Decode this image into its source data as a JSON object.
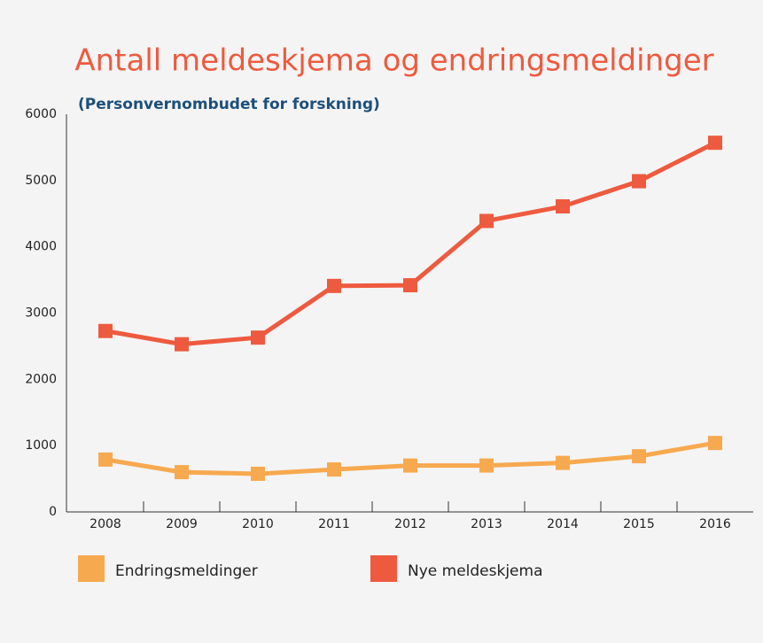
{
  "chart_data": {
    "type": "line",
    "title": "Antall meldeskjema og endringsmeldinger",
    "subtitle": "(Personvernombudet for forskning)",
    "categories": [
      "2008",
      "2009",
      "2010",
      "2011",
      "2012",
      "2013",
      "2014",
      "2015",
      "2016"
    ],
    "series": [
      {
        "name": "Endringsmeldinger",
        "color": "#f7a94f",
        "values": [
          790,
          600,
          575,
          640,
          700,
          700,
          740,
          840,
          1040
        ]
      },
      {
        "name": "Nye meldeskjema",
        "color": "#ee5a3f",
        "values": [
          2730,
          2530,
          2630,
          3410,
          3420,
          4390,
          4610,
          4990,
          5570
        ]
      }
    ],
    "ylim": [
      0,
      6000
    ],
    "yticks": [
      0,
      1000,
      2000,
      3000,
      4000,
      5000,
      6000
    ],
    "grid": false
  }
}
